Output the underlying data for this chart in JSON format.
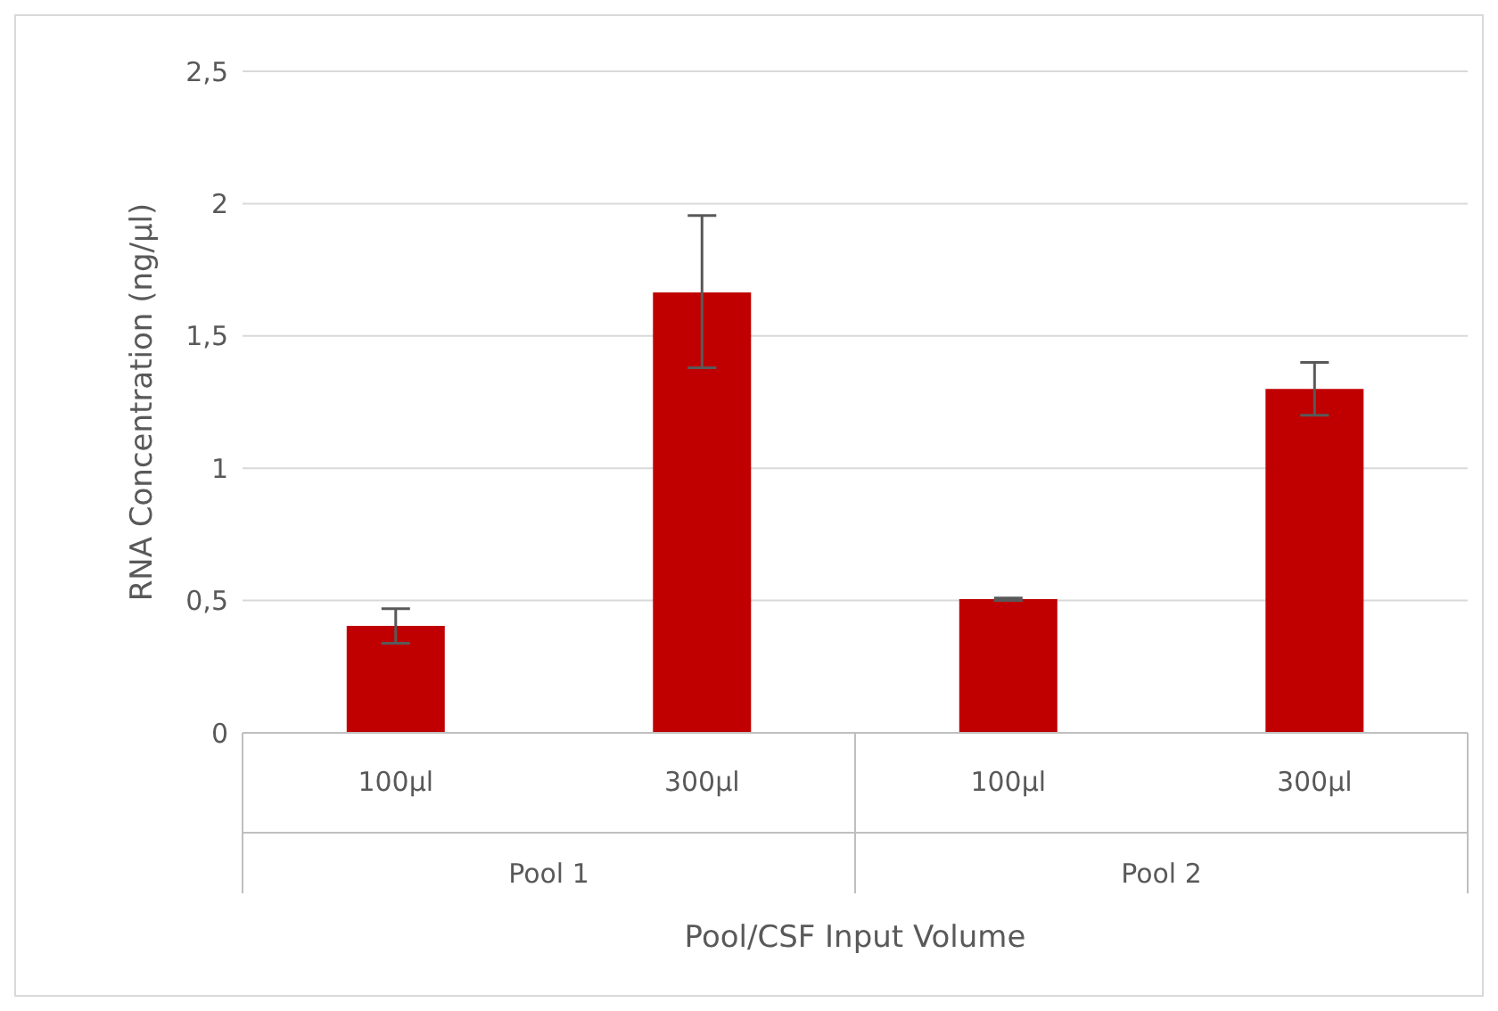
{
  "chart_data": {
    "type": "bar",
    "xlabel": "Pool/CSF Input Volume",
    "ylabel": "RNA Concentration (ng/µl)",
    "categories": [
      "100µl",
      "300µl",
      "100µl",
      "300µl"
    ],
    "values": [
      0.404,
      1.664,
      0.505,
      1.3
    ],
    "errors": [
      0.065,
      [
        1.38,
        1.955
      ],
      0.005,
      0.1
    ],
    "color": "#c00000",
    "ylim": [
      0,
      2.5
    ],
    "yticks": [
      0,
      {
        "value": 0.5,
        "label": "0,5"
      },
      1,
      {
        "value": 1.5,
        "label": "1,5"
      },
      2,
      {
        "value": 2.5,
        "label": "2,5"
      }
    ],
    "grid": "y",
    "legend": false,
    "annotations": [
      "Pool 1",
      "Pool 2"
    ]
  }
}
